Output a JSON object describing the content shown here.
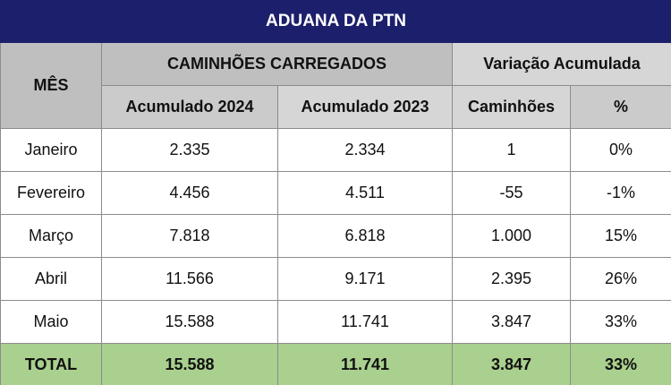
{
  "title": "ADUANA DA PTN",
  "header": {
    "month": "MÊS",
    "group_loaded": "CAMINHÕES CARREGADOS",
    "group_variation": "Variação Acumulada",
    "sub": [
      "Acumulado 2024",
      "Acumulado 2023",
      "Caminhões",
      "%"
    ]
  },
  "rows": [
    [
      "Janeiro",
      "2.335",
      "2.334",
      "1",
      "0%"
    ],
    [
      "Fevereiro",
      "4.456",
      "4.511",
      "-55",
      "-1%"
    ],
    [
      "Março",
      "7.818",
      "6.818",
      "1.000",
      "15%"
    ],
    [
      "Abril",
      "11.566",
      "9.171",
      "2.395",
      "26%"
    ],
    [
      "Maio",
      "15.588",
      "11.741",
      "3.847",
      "33%"
    ]
  ],
  "total": [
    "TOTAL",
    "15.588",
    "11.741",
    "3.847",
    "33%"
  ]
}
